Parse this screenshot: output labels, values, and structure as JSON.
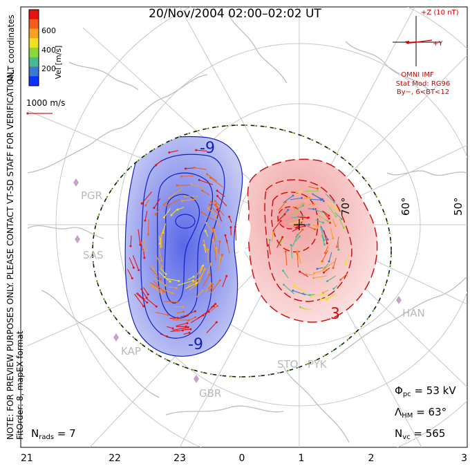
{
  "header": {
    "title": "20/Nov/2004 02:00–02:02 UT"
  },
  "colorbar": {
    "label": "Vel [m/s]",
    "ticks": [
      200,
      400,
      600
    ],
    "colors": [
      "#1030ff",
      "#3a7ad0",
      "#4ab890",
      "#8ad83a",
      "#f0e020",
      "#f8a020",
      "#f06018",
      "#e81010"
    ]
  },
  "left_notes": {
    "coords": "MLT coordinates",
    "note": "NOTE: FOR PREVIEW PURPOSES ONLY. PLEASE CONTACT VT-SD STAFF FOR VERIFICATION.",
    "fit": "FitOrder: 8, mapEX format"
  },
  "scale": {
    "label": "1000 m/s",
    "color": "#d02020"
  },
  "imf": {
    "z_label": "+Z (10 nT)",
    "y_label": "+Y",
    "source": "OMNI IMF",
    "model": "Stat Mod: RG96",
    "condition": "By−, 6<BT<12",
    "color": "#d00000"
  },
  "latitudes": [
    "50°",
    "60°",
    "70°"
  ],
  "mlt_ticks": [
    "21",
    "22",
    "23",
    "0",
    "1",
    "2",
    "3"
  ],
  "stations": [
    "PGR",
    "SAS",
    "KAP",
    "GBR",
    "STO",
    "PYK",
    "HAN"
  ],
  "contours": {
    "negative_label": "-9",
    "negative_label_2": "-9",
    "positive_label": "3",
    "negative_color": "#1020c0",
    "positive_color": "#d01010"
  },
  "stats": {
    "phi_symbol": "Φ",
    "phi_sub": "pc",
    "phi_value": " = 53 kV",
    "lambda_symbol": "Λ",
    "lambda_sub": "HM",
    "lambda_value": " = 63°",
    "nvc_sym": "N",
    "nvc_sub": "vc",
    "nvc_value": " = 565",
    "nrads_sym": "N",
    "nrads_sub": "rads",
    "nrads_value": " = 7"
  },
  "chart_data": {
    "type": "scatter",
    "title": "20/Nov/2004 02:00–02:02 UT",
    "xlabel": "",
    "ylabel": "",
    "x_ticks": [
      "21",
      "22",
      "23",
      "0",
      "1",
      "2",
      "3"
    ],
    "latitude_rings": [
      50,
      60,
      70
    ],
    "pole_center_mlt": 1.0,
    "heppner_maynard_lat": 63,
    "cross_polar_cap_potential_kV": 53,
    "velocity_scale_max": 1000,
    "colorbar_range": [
      0,
      800
    ],
    "grid": true,
    "legend": "top-left"
  }
}
